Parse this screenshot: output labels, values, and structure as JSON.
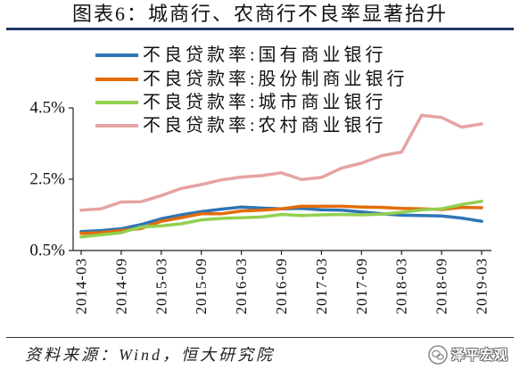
{
  "figure": {
    "source": "资料来源：Wind，恒大研究院",
    "watermark": "泽平宏观",
    "watermark_icon": "wechat-icon"
  },
  "chart_data": {
    "type": "line",
    "title": "图表6：城商行、农商行不良率显著抬升",
    "xlabel": "",
    "ylabel": "",
    "x": [
      "2014-03",
      "2014-06",
      "2014-09",
      "2014-12",
      "2015-03",
      "2015-06",
      "2015-09",
      "2015-12",
      "2016-03",
      "2016-06",
      "2016-09",
      "2016-12",
      "2017-03",
      "2017-06",
      "2017-09",
      "2017-12",
      "2018-03",
      "2018-06",
      "2018-09",
      "2018-12",
      "2019-03"
    ],
    "x_tick_labels": [
      "2014-03",
      "2014-09",
      "2015-03",
      "2015-09",
      "2016-03",
      "2016-09",
      "2017-03",
      "2017-09",
      "2018-03",
      "2018-09",
      "2019-03"
    ],
    "ylim": [
      0.5,
      4.5
    ],
    "y_ticks": [
      0.5,
      2.5,
      4.5
    ],
    "y_tick_labels": [
      "0.5%",
      "2.5%",
      "4.5%"
    ],
    "grid": false,
    "legend": "top",
    "series": [
      {
        "name": "不良贷款率:国有商业银行",
        "color": "#2e75b6",
        "values": [
          1.03,
          1.06,
          1.11,
          1.23,
          1.39,
          1.5,
          1.59,
          1.66,
          1.72,
          1.69,
          1.67,
          1.68,
          1.64,
          1.63,
          1.58,
          1.53,
          1.49,
          1.48,
          1.47,
          1.41,
          1.32
        ]
      },
      {
        "name": "不良贷款率:股份制商业银行",
        "color": "#e36c09",
        "values": [
          0.98,
          1.0,
          1.06,
          1.12,
          1.32,
          1.42,
          1.53,
          1.53,
          1.61,
          1.63,
          1.67,
          1.74,
          1.74,
          1.74,
          1.72,
          1.71,
          1.68,
          1.67,
          1.65,
          1.71,
          1.7
        ]
      },
      {
        "name": "不良贷款率:城市商业银行",
        "color": "#92d050",
        "values": [
          0.88,
          0.94,
          1.0,
          1.16,
          1.19,
          1.25,
          1.36,
          1.4,
          1.42,
          1.44,
          1.51,
          1.48,
          1.5,
          1.51,
          1.5,
          1.52,
          1.57,
          1.64,
          1.67,
          1.79,
          1.88
        ]
      },
      {
        "name": "不良贷款率:农村商业银行",
        "color": "#e6a3a3",
        "values": [
          1.63,
          1.67,
          1.86,
          1.87,
          2.04,
          2.24,
          2.35,
          2.48,
          2.56,
          2.6,
          2.68,
          2.49,
          2.55,
          2.81,
          2.95,
          3.16,
          3.26,
          4.29,
          4.23,
          3.96,
          4.05
        ]
      }
    ]
  }
}
